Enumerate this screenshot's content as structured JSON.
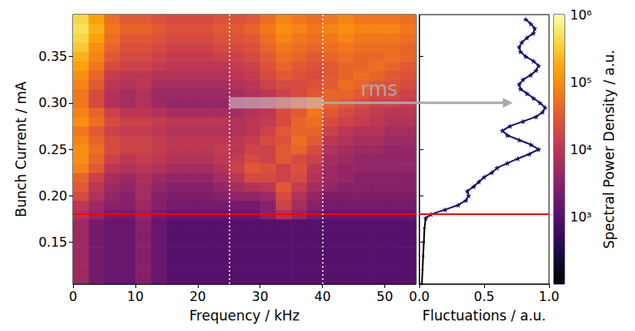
{
  "chart_data": [
    {
      "type": "heatmap",
      "xlabel": "Frequency / kHz",
      "ylabel": "Bunch Current / mA",
      "xlim": [
        0,
        55
      ],
      "ylim": [
        0.105,
        0.395
      ],
      "xticks": [
        0,
        10,
        20,
        30,
        40,
        50
      ],
      "yticks": [
        0.15,
        {
          "value": 0.2,
          "label": "0.20"
        },
        0.25,
        {
          "value": 0.3,
          "label": "0.30"
        },
        0.35
      ],
      "threshold_current": 0.176,
      "window": [
        25,
        40
      ],
      "annotation": {
        "text": "rms",
        "band": [
          25,
          40
        ],
        "y": 0.3
      },
      "x_bins": [
        0,
        2.5,
        5,
        7.5,
        10,
        12.5,
        15,
        17.5,
        20,
        22.5,
        25,
        27.5,
        30,
        32.5,
        35,
        37.5,
        40,
        42.5,
        45,
        47.5,
        50,
        52.5,
        55
      ],
      "y_bins": [
        0.105,
        0.115,
        0.125,
        0.135,
        0.145,
        0.155,
        0.165,
        0.175,
        0.185,
        0.195,
        0.205,
        0.215,
        0.225,
        0.235,
        0.245,
        0.255,
        0.265,
        0.275,
        0.285,
        0.295,
        0.305,
        0.315,
        0.325,
        0.335,
        0.345,
        0.355,
        0.365,
        0.375,
        0.385,
        0.395
      ],
      "cells": [
        [
          5000,
          2000,
          1500,
          1500,
          3000,
          1500,
          1000,
          1000,
          1000,
          1000,
          1000,
          1000,
          1000,
          1000,
          1000,
          1000,
          1000,
          1000,
          1000,
          1000,
          1000,
          1000
        ],
        [
          5000,
          2000,
          1500,
          1500,
          3000,
          1500,
          1000,
          1000,
          1000,
          1000,
          1000,
          1000,
          1000,
          1000,
          1000,
          1000,
          1000,
          1000,
          1000,
          1000,
          1000,
          1000
        ],
        [
          5000,
          2000,
          1500,
          1500,
          3000,
          1500,
          1000,
          1000,
          1000,
          1000,
          1000,
          1000,
          1000,
          1000,
          1000,
          1000,
          1000,
          1000,
          1000,
          1000,
          1000,
          1000
        ],
        [
          5000,
          2000,
          1500,
          1500,
          3000,
          1500,
          1000,
          1000,
          1000,
          1000,
          1000,
          1000,
          1000,
          1000,
          1000,
          1000,
          1000,
          1000,
          1000,
          1000,
          1000,
          1000
        ],
        [
          5000,
          2000,
          1500,
          1500,
          3000,
          1500,
          1000,
          1000,
          1000,
          1000,
          1000,
          1000,
          1000,
          1000,
          1000,
          1000,
          1000,
          1000,
          1000,
          1000,
          1000,
          1000
        ],
        [
          5000,
          2000,
          1500,
          1500,
          3000,
          1500,
          1000,
          1000,
          1000,
          1000,
          1000,
          1000,
          1000,
          1000,
          1000,
          1000,
          1000,
          1000,
          1000,
          1000,
          1000,
          1000
        ],
        [
          5000,
          2000,
          1500,
          1500,
          3000,
          1500,
          1000,
          1000,
          1000,
          1000,
          1000,
          1000,
          1000,
          1000,
          1000,
          1000,
          1000,
          1000,
          1000,
          1000,
          1000,
          1000
        ],
        [
          8000,
          4000,
          2000,
          2000,
          4000,
          2000,
          1500,
          1500,
          1500,
          1500,
          1500,
          1500,
          3000,
          8000,
          4000,
          2000,
          1500,
          1500,
          1500,
          1500,
          1500,
          1500
        ],
        [
          10000,
          5000,
          3000,
          3000,
          5000,
          3000,
          2000,
          2000,
          2000,
          2000,
          2000,
          2000,
          3000,
          15000,
          6000,
          3000,
          2000,
          2000,
          2000,
          2000,
          2000,
          2000
        ],
        [
          20000,
          8000,
          4000,
          3000,
          6000,
          3000,
          2500,
          2500,
          2500,
          3000,
          4000,
          4000,
          5000,
          20000,
          8000,
          4000,
          2500,
          2500,
          2500,
          2500,
          2500,
          2500
        ],
        [
          30000,
          10000,
          5000,
          4000,
          6000,
          4000,
          3000,
          3000,
          3000,
          4000,
          6000,
          8000,
          10000,
          30000,
          12000,
          6000,
          4000,
          3000,
          3000,
          3000,
          3000,
          3000
        ],
        [
          40000,
          15000,
          6000,
          5000,
          7000,
          5000,
          4000,
          4000,
          4000,
          6000,
          10000,
          20000,
          20000,
          15000,
          20000,
          8000,
          5000,
          4000,
          3000,
          3000,
          3000,
          3000
        ],
        [
          80000,
          30000,
          10000,
          8000,
          10000,
          8000,
          6000,
          6000,
          6000,
          8000,
          15000,
          30000,
          25000,
          15000,
          25000,
          10000,
          5000,
          4000,
          4000,
          4000,
          4000,
          4000
        ],
        [
          100000,
          40000,
          15000,
          10000,
          12000,
          10000,
          8000,
          8000,
          8000,
          10000,
          12000,
          20000,
          15000,
          30000,
          20000,
          15000,
          6000,
          5000,
          4000,
          4000,
          4000,
          4000
        ],
        [
          100000,
          50000,
          20000,
          15000,
          15000,
          12000,
          10000,
          10000,
          10000,
          12000,
          10000,
          15000,
          15000,
          30000,
          40000,
          20000,
          8000,
          6000,
          5000,
          5000,
          4000,
          4000
        ],
        [
          80000,
          40000,
          20000,
          15000,
          15000,
          12000,
          10000,
          10000,
          10000,
          10000,
          10000,
          12000,
          20000,
          25000,
          50000,
          30000,
          10000,
          8000,
          6000,
          6000,
          5000,
          5000
        ],
        [
          60000,
          30000,
          15000,
          12000,
          12000,
          10000,
          8000,
          8000,
          8000,
          8000,
          8000,
          10000,
          15000,
          30000,
          40000,
          40000,
          15000,
          10000,
          8000,
          8000,
          6000,
          6000
        ],
        [
          100000,
          50000,
          20000,
          15000,
          15000,
          12000,
          10000,
          10000,
          10000,
          10000,
          8000,
          10000,
          12000,
          20000,
          40000,
          50000,
          20000,
          15000,
          12000,
          10000,
          8000,
          8000
        ],
        [
          80000,
          40000,
          15000,
          10000,
          10000,
          8000,
          6000,
          6000,
          6000,
          6000,
          6000,
          8000,
          10000,
          20000,
          30000,
          60000,
          30000,
          20000,
          15000,
          12000,
          10000,
          10000
        ],
        [
          60000,
          20000,
          8000,
          6000,
          8000,
          5000,
          4000,
          4000,
          4000,
          4000,
          5000,
          6000,
          8000,
          15000,
          25000,
          40000,
          40000,
          30000,
          20000,
          15000,
          15000,
          12000
        ],
        [
          60000,
          20000,
          8000,
          6000,
          8000,
          5000,
          5000,
          5000,
          5000,
          5000,
          6000,
          8000,
          10000,
          15000,
          20000,
          30000,
          40000,
          40000,
          30000,
          20000,
          20000,
          15000
        ],
        [
          80000,
          30000,
          10000,
          8000,
          10000,
          6000,
          6000,
          6000,
          6000,
          6000,
          8000,
          10000,
          15000,
          20000,
          20000,
          25000,
          30000,
          50000,
          40000,
          30000,
          25000,
          20000
        ],
        [
          100000,
          40000,
          12000,
          10000,
          10000,
          8000,
          8000,
          8000,
          8000,
          8000,
          10000,
          12000,
          20000,
          30000,
          25000,
          20000,
          30000,
          40000,
          50000,
          40000,
          30000,
          25000
        ],
        [
          150000,
          60000,
          20000,
          15000,
          15000,
          12000,
          10000,
          10000,
          10000,
          10000,
          12000,
          15000,
          25000,
          40000,
          30000,
          25000,
          30000,
          40000,
          40000,
          50000,
          40000,
          30000
        ],
        [
          200000,
          80000,
          30000,
          20000,
          20000,
          15000,
          12000,
          12000,
          12000,
          15000,
          15000,
          20000,
          30000,
          50000,
          40000,
          30000,
          40000,
          50000,
          40000,
          40000,
          50000,
          40000
        ],
        [
          300000,
          100000,
          40000,
          25000,
          25000,
          20000,
          15000,
          15000,
          15000,
          20000,
          20000,
          25000,
          40000,
          60000,
          50000,
          40000,
          50000,
          60000,
          50000,
          50000,
          50000,
          40000
        ],
        [
          400000,
          150000,
          50000,
          30000,
          30000,
          25000,
          20000,
          20000,
          20000,
          25000,
          25000,
          30000,
          50000,
          80000,
          60000,
          50000,
          60000,
          80000,
          60000,
          60000,
          60000,
          50000
        ],
        [
          500000,
          200000,
          60000,
          40000,
          40000,
          30000,
          25000,
          25000,
          25000,
          30000,
          30000,
          40000,
          60000,
          100000,
          80000,
          60000,
          80000,
          100000,
          80000,
          80000,
          80000,
          60000
        ],
        [
          400000,
          150000,
          50000,
          30000,
          30000,
          25000,
          20000,
          20000,
          20000,
          25000,
          25000,
          30000,
          50000,
          80000,
          60000,
          50000,
          60000,
          80000,
          60000,
          60000,
          60000,
          50000
        ]
      ],
      "colorbar": {
        "log": true,
        "lim": [
          100,
          1000000
        ],
        "ticks": [
          {
            "value": 1000,
            "label": "10³"
          },
          {
            "value": 10000,
            "label": "10⁴"
          },
          {
            "value": 100000,
            "label": "10⁵"
          },
          {
            "value": 1000000,
            "label": "10⁶"
          }
        ],
        "label": "Spectral Power Density / a.u.",
        "tick_labels": "y"
      }
    },
    {
      "type": "line",
      "xlabel": "Fluctuations / a.u.",
      "xlim": [
        0,
        1
      ],
      "xticks": [
        {
          "value": 0,
          "label": "0.0"
        },
        {
          "value": 0.5,
          "label": "0.5"
        },
        {
          "value": 1,
          "label": "1.0"
        }
      ],
      "ylim": [
        0.105,
        0.395
      ],
      "yticks": [
        0.15,
        0.2,
        0.25,
        0.3,
        0.35
      ],
      "tick_labels": "x",
      "threshold_current": 0.176,
      "series": [
        {
          "color": "#000000",
          "marker": "circle",
          "x": [
            0.02,
            0.025,
            0.03,
            0.035,
            0.04,
            0.05
          ],
          "y": [
            0.105,
            0.12,
            0.135,
            0.15,
            0.165,
            0.176
          ]
        },
        {
          "color": "#10106e",
          "marker": "star",
          "x": [
            0.05,
            0.09,
            0.2,
            0.3,
            0.36,
            0.38,
            0.37,
            0.42,
            0.46,
            0.5,
            0.56,
            0.6,
            0.68,
            0.76,
            0.85,
            0.92,
            0.86,
            0.77,
            0.68,
            0.64,
            0.7,
            0.8,
            0.9,
            0.95,
            0.97,
            0.93,
            0.88,
            0.83,
            0.78,
            0.77,
            0.8,
            0.86,
            0.9,
            0.92,
            0.88,
            0.82,
            0.78,
            0.77,
            0.79,
            0.83,
            0.88,
            0.89,
            0.86,
            0.82
          ],
          "y": [
            0.176,
            0.18,
            0.185,
            0.19,
            0.195,
            0.2,
            0.205,
            0.21,
            0.215,
            0.22,
            0.225,
            0.23,
            0.235,
            0.24,
            0.245,
            0.25,
            0.255,
            0.26,
            0.265,
            0.27,
            0.275,
            0.28,
            0.285,
            0.29,
            0.295,
            0.3,
            0.305,
            0.31,
            0.315,
            0.32,
            0.325,
            0.33,
            0.335,
            0.34,
            0.345,
            0.35,
            0.355,
            0.36,
            0.365,
            0.37,
            0.375,
            0.38,
            0.385,
            0.39
          ]
        }
      ]
    }
  ]
}
